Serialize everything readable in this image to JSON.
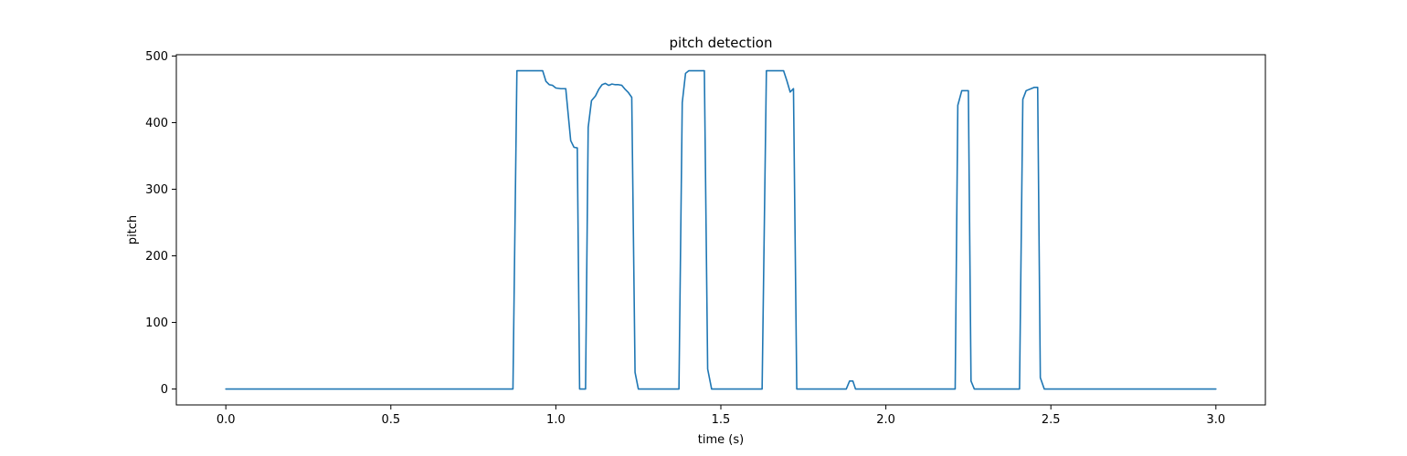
{
  "chart_data": {
    "type": "line",
    "title": "pitch detection",
    "xlabel": "time (s)",
    "ylabel": "pitch",
    "xlim": [
      -0.15,
      3.15
    ],
    "ylim": [
      -23.9,
      502
    ],
    "xticks": [
      0.0,
      0.5,
      1.0,
      1.5,
      2.0,
      2.5,
      3.0
    ],
    "xtick_labels": [
      "0.0",
      "0.5",
      "1.0",
      "1.5",
      "2.0",
      "2.5",
      "3.0"
    ],
    "yticks": [
      0,
      100,
      200,
      300,
      400,
      500
    ],
    "ytick_labels": [
      "0",
      "100",
      "200",
      "300",
      "400",
      "500"
    ],
    "grid": false,
    "legend": "none",
    "series": [
      {
        "color": "#1f77b4",
        "x": [
          0.0,
          0.87,
          0.882,
          0.96,
          0.97,
          0.98,
          0.99,
          1.0,
          1.015,
          1.03,
          1.045,
          1.055,
          1.065,
          1.072,
          1.078,
          1.09,
          1.098,
          1.108,
          1.12,
          1.13,
          1.14,
          1.15,
          1.16,
          1.17,
          1.18,
          1.19,
          1.2,
          1.21,
          1.22,
          1.23,
          1.24,
          1.25,
          1.262,
          1.275,
          1.373,
          1.383,
          1.393,
          1.403,
          1.413,
          1.45,
          1.46,
          1.472,
          1.625,
          1.638,
          1.68,
          1.69,
          1.7,
          1.71,
          1.72,
          1.73,
          1.88,
          1.89,
          1.9,
          1.908,
          2.21,
          2.218,
          2.23,
          2.25,
          2.258,
          2.268,
          2.405,
          2.415,
          2.425,
          2.44,
          2.45,
          2.46,
          2.468,
          2.48,
          3.0
        ],
        "y": [
          0,
          0,
          478,
          478,
          462,
          457,
          456,
          452,
          451,
          451,
          373,
          363,
          362,
          0,
          0,
          0,
          393,
          433,
          440,
          450,
          457,
          459,
          456,
          458,
          457,
          457,
          456,
          450,
          445,
          438,
          25,
          0,
          0,
          0,
          0,
          430,
          474,
          478,
          478,
          478,
          30,
          0,
          0,
          478,
          478,
          478,
          463,
          446,
          451,
          0,
          0,
          12,
          12,
          0,
          0,
          426,
          448,
          448,
          12,
          0,
          0,
          435,
          448,
          451,
          453,
          453,
          17,
          0,
          0
        ]
      }
    ]
  }
}
